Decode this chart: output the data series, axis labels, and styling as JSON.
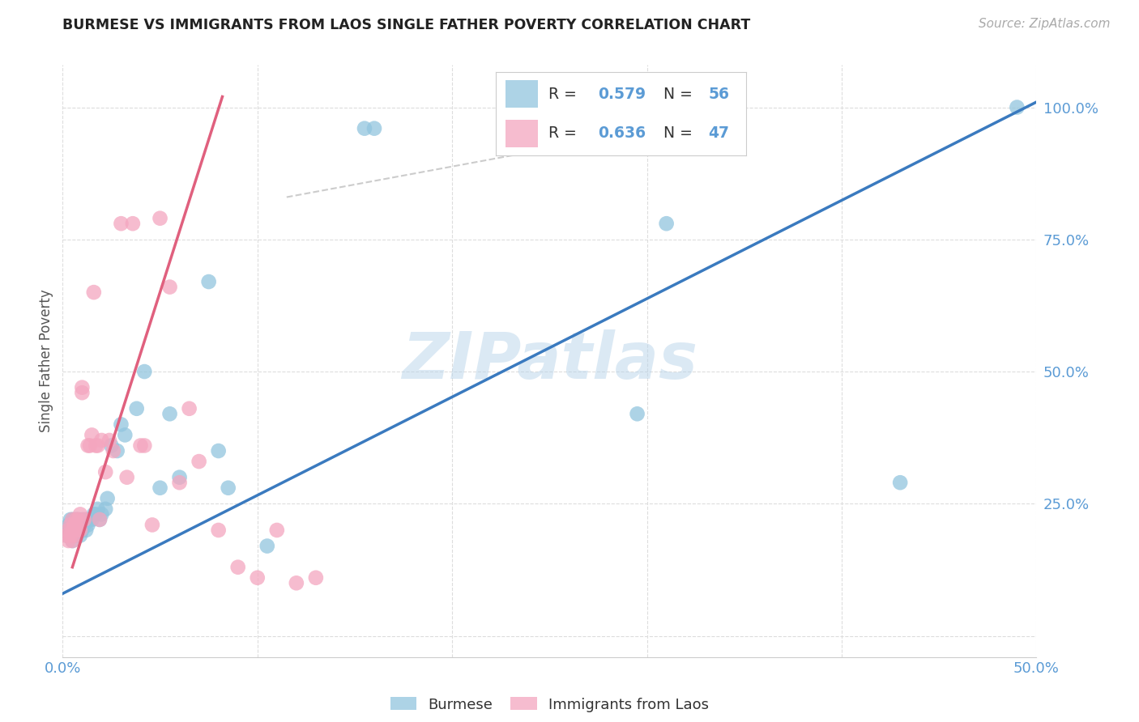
{
  "title": "BURMESE VS IMMIGRANTS FROM LAOS SINGLE FATHER POVERTY CORRELATION CHART",
  "source": "Source: ZipAtlas.com",
  "ylabel": "Single Father Poverty",
  "legend_label_blue": "Burmese",
  "legend_label_pink": "Immigrants from Laos",
  "blue_color": "#92c5de",
  "pink_color": "#f4a6bf",
  "blue_line_color": "#3a7abf",
  "pink_line_color": "#e0607e",
  "dash_line_color": "#cccccc",
  "watermark": "ZIPatlas",
  "tick_color": "#5b9bd5",
  "xmin": 0.0,
  "xmax": 0.5,
  "ymin": -0.04,
  "ymax": 1.08,
  "xtick_vals": [
    0.0,
    0.1,
    0.2,
    0.3,
    0.4,
    0.5
  ],
  "xtick_labels": [
    "0.0%",
    "",
    "",
    "",
    "",
    "50.0%"
  ],
  "ytick_vals": [
    0.0,
    0.25,
    0.5,
    0.75,
    1.0
  ],
  "ytick_labels": [
    "",
    "25.0%",
    "50.0%",
    "75.0%",
    "100.0%"
  ],
  "blue_line_x": [
    0.0,
    0.5
  ],
  "blue_line_y": [
    0.08,
    1.01
  ],
  "pink_line_x": [
    0.005,
    0.082
  ],
  "pink_line_y": [
    0.13,
    1.02
  ],
  "dash_line_x": [
    0.115,
    0.335
  ],
  "dash_line_y": [
    0.83,
    0.98
  ],
  "blue_scatter_x": [
    0.002,
    0.003,
    0.003,
    0.004,
    0.004,
    0.004,
    0.005,
    0.005,
    0.005,
    0.005,
    0.006,
    0.006,
    0.006,
    0.007,
    0.007,
    0.007,
    0.008,
    0.008,
    0.008,
    0.009,
    0.009,
    0.01,
    0.01,
    0.01,
    0.011,
    0.012,
    0.012,
    0.013,
    0.014,
    0.015,
    0.016,
    0.017,
    0.018,
    0.019,
    0.02,
    0.022,
    0.023,
    0.025,
    0.028,
    0.03,
    0.032,
    0.038,
    0.042,
    0.05,
    0.055,
    0.06,
    0.075,
    0.08,
    0.085,
    0.105,
    0.155,
    0.16,
    0.295,
    0.31,
    0.43,
    0.49
  ],
  "blue_scatter_y": [
    0.19,
    0.2,
    0.21,
    0.2,
    0.21,
    0.22,
    0.18,
    0.19,
    0.21,
    0.22,
    0.19,
    0.2,
    0.22,
    0.19,
    0.2,
    0.22,
    0.2,
    0.21,
    0.22,
    0.19,
    0.21,
    0.2,
    0.21,
    0.22,
    0.21,
    0.2,
    0.22,
    0.21,
    0.22,
    0.22,
    0.23,
    0.23,
    0.24,
    0.22,
    0.23,
    0.24,
    0.26,
    0.36,
    0.35,
    0.4,
    0.38,
    0.43,
    0.5,
    0.28,
    0.42,
    0.3,
    0.67,
    0.35,
    0.28,
    0.17,
    0.96,
    0.96,
    0.42,
    0.78,
    0.29,
    1.0
  ],
  "pink_scatter_x": [
    0.002,
    0.003,
    0.003,
    0.004,
    0.004,
    0.005,
    0.005,
    0.005,
    0.006,
    0.006,
    0.007,
    0.007,
    0.008,
    0.008,
    0.009,
    0.009,
    0.01,
    0.01,
    0.011,
    0.013,
    0.014,
    0.015,
    0.016,
    0.017,
    0.018,
    0.019,
    0.02,
    0.022,
    0.024,
    0.026,
    0.03,
    0.033,
    0.036,
    0.04,
    0.042,
    0.046,
    0.05,
    0.055,
    0.06,
    0.065,
    0.07,
    0.08,
    0.09,
    0.1,
    0.11,
    0.12,
    0.13
  ],
  "pink_scatter_y": [
    0.19,
    0.18,
    0.2,
    0.19,
    0.21,
    0.18,
    0.2,
    0.22,
    0.19,
    0.21,
    0.2,
    0.22,
    0.2,
    0.22,
    0.2,
    0.23,
    0.46,
    0.47,
    0.22,
    0.36,
    0.36,
    0.38,
    0.65,
    0.36,
    0.36,
    0.22,
    0.37,
    0.31,
    0.37,
    0.35,
    0.78,
    0.3,
    0.78,
    0.36,
    0.36,
    0.21,
    0.79,
    0.66,
    0.29,
    0.43,
    0.33,
    0.2,
    0.13,
    0.11,
    0.2,
    0.1,
    0.11
  ]
}
